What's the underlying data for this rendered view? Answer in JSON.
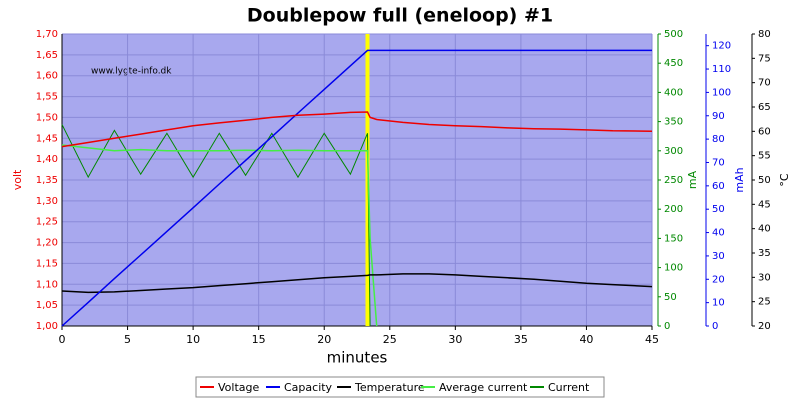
{
  "chart_data": {
    "type": "line",
    "title": "Doublepow full (eneloop) #1",
    "watermark": "www.lygte-info.dk",
    "x_label": "minutes",
    "y_label": "volt",
    "y2_label": "mA",
    "y3_label": "mAh",
    "y4_label": "°C",
    "x": [
      0,
      2,
      4,
      6,
      8,
      10,
      12,
      14,
      16,
      18,
      20,
      22,
      23.3,
      23.5,
      24,
      26,
      28,
      30,
      32,
      34,
      36,
      38,
      40,
      42,
      45
    ],
    "xlim": [
      0,
      45
    ],
    "xticks": [
      0,
      5,
      10,
      15,
      20,
      25,
      30,
      35,
      40,
      45
    ],
    "ylim": [
      1.0,
      1.7
    ],
    "yticks": [
      {
        "value": 1.0,
        "label": "1,00"
      },
      {
        "value": 1.05,
        "label": "1,05"
      },
      {
        "value": 1.1,
        "label": "1,10"
      },
      {
        "value": 1.15,
        "label": "1,15"
      },
      {
        "value": 1.2,
        "label": "1,20"
      },
      {
        "value": 1.25,
        "label": "1,25"
      },
      {
        "value": 1.3,
        "label": "1,30"
      },
      {
        "value": 1.35,
        "label": "1,35"
      },
      {
        "value": 1.4,
        "label": "1,40"
      },
      {
        "value": 1.45,
        "label": "1,45"
      },
      {
        "value": 1.5,
        "label": "1,50"
      },
      {
        "value": 1.55,
        "label": "1,55"
      },
      {
        "value": 1.6,
        "label": "1,60"
      },
      {
        "value": 1.65,
        "label": "1,65"
      },
      {
        "value": 1.7,
        "label": "1,70"
      }
    ],
    "y2lim": [
      0,
      500
    ],
    "y2ticks": [
      0,
      50,
      100,
      150,
      200,
      250,
      300,
      350,
      400,
      450,
      500
    ],
    "y3lim": [
      0,
      125
    ],
    "y3ticks": [
      0,
      10,
      20,
      30,
      40,
      50,
      60,
      70,
      80,
      90,
      100,
      110,
      120
    ],
    "y4lim": [
      20,
      80
    ],
    "y4ticks": [
      20,
      25,
      30,
      35,
      40,
      45,
      50,
      55,
      60,
      65,
      70,
      75,
      80
    ],
    "grid": true,
    "highlight_x": 23.3,
    "highlight_color": "#ffff00",
    "series": [
      {
        "name": "Voltage",
        "color": "#ee0000",
        "axis": "y",
        "values": [
          1.43,
          1.44,
          1.45,
          1.46,
          1.47,
          1.48,
          1.487,
          1.493,
          1.5,
          1.505,
          1.508,
          1.512,
          1.513,
          1.5,
          1.495,
          1.488,
          1.483,
          1.48,
          1.478,
          1.475,
          1.473,
          1.472,
          1.47,
          1.468,
          1.467
        ]
      },
      {
        "name": "Capacity",
        "color": "#0000ee",
        "axis": "y3",
        "values": [
          0,
          10.1,
          20.3,
          30.4,
          40.5,
          50.6,
          60.8,
          70.9,
          81.0,
          91.2,
          101.3,
          111.4,
          118,
          118,
          118,
          118,
          118,
          118,
          118,
          118,
          118,
          118,
          118,
          118,
          118
        ]
      },
      {
        "name": "Temperature",
        "color": "#000000",
        "axis": "y4",
        "values": [
          27.2,
          26.9,
          27.0,
          27.3,
          27.6,
          27.9,
          28.3,
          28.7,
          29.1,
          29.5,
          29.9,
          30.2,
          30.4,
          30.5,
          30.5,
          30.7,
          30.7,
          30.5,
          30.2,
          29.9,
          29.6,
          29.2,
          28.8,
          28.5,
          28.1
        ]
      },
      {
        "name": "Average current",
        "color": "#44ee44",
        "axis": "y2",
        "values": [
          310,
          305,
          300,
          302,
          300,
          300,
          300,
          301,
          300,
          301,
          300,
          300,
          300,
          150,
          0,
          null,
          null,
          null,
          null,
          null,
          null,
          null,
          null,
          null,
          null
        ]
      },
      {
        "name": "Current",
        "color": "#008800",
        "axis": "y2",
        "values": [
          345,
          255,
          335,
          260,
          330,
          255,
          330,
          258,
          330,
          255,
          330,
          260,
          330,
          0,
          null,
          null,
          null,
          null,
          null,
          null,
          null,
          null,
          null,
          null,
          null
        ]
      }
    ]
  }
}
